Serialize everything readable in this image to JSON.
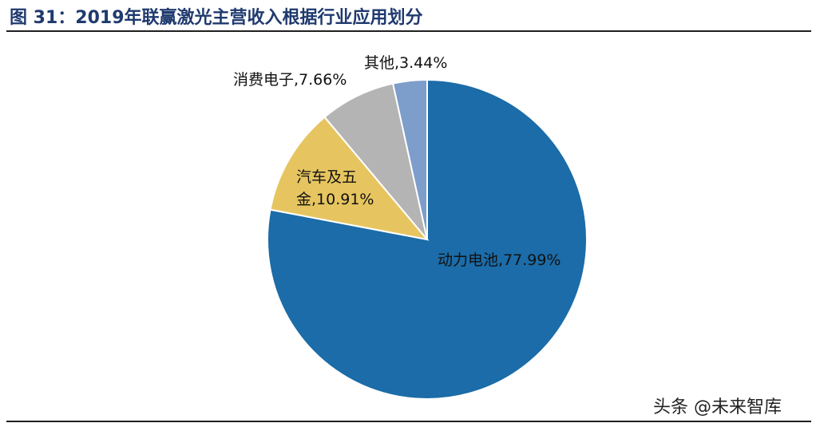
{
  "title": "图 31：2019年联赢激光主营收入根据行业应用划分",
  "watermark": "头条 @未来智库",
  "chart_data": {
    "type": "pie",
    "title": "",
    "slices": [
      {
        "label_lines": [
          "动力电池,77.99%"
        ],
        "category": "动力电池",
        "value": 77.99,
        "color": "#1b6ca8"
      },
      {
        "label_lines": [
          "汽车及五",
          "金,10.91%"
        ],
        "category": "汽车及五金",
        "value": 10.91,
        "color": "#e6c560"
      },
      {
        "label_lines": [
          "消费电子,7.66%"
        ],
        "category": "消费电子",
        "value": 7.66,
        "color": "#b4b4b4"
      },
      {
        "label_lines": [
          "其他,3.44%"
        ],
        "category": "其他",
        "value": 3.44,
        "color": "#7d9dcb"
      }
    ],
    "start": "12 o'clock",
    "direction": "clockwise"
  }
}
